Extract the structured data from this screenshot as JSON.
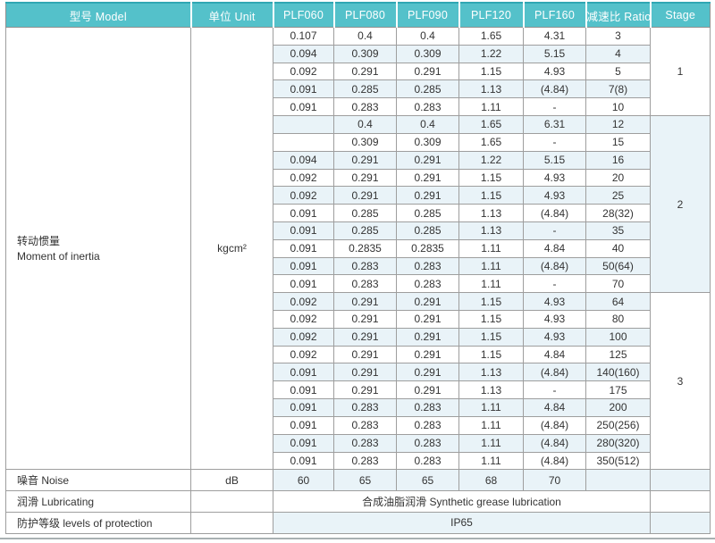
{
  "table": {
    "header": [
      "型号 Model",
      "单位 Unit",
      "PLF060",
      "PLF080",
      "PLF090",
      "PLF120",
      "PLF160",
      "减速比 Ratio",
      "Stage"
    ],
    "inertia": {
      "model_cn": "转动惯量",
      "model_en": "Moment of inertia",
      "unit": "kgcm²",
      "stages": [
        {
          "stage": "1",
          "rows": [
            [
              "0.107",
              "0.4",
              "0.4",
              "1.65",
              "4.31",
              "3"
            ],
            [
              "0.094",
              "0.309",
              "0.309",
              "1.22",
              "5.15",
              "4"
            ],
            [
              "0.092",
              "0.291",
              "0.291",
              "1.15",
              "4.93",
              "5"
            ],
            [
              "0.091",
              "0.285",
              "0.285",
              "1.13",
              "(4.84)",
              "7(8)"
            ],
            [
              "0.091",
              "0.283",
              "0.283",
              "1.11",
              "-",
              "10"
            ]
          ]
        },
        {
          "stage": "2",
          "rows": [
            [
              "",
              "0.4",
              "0.4",
              "1.65",
              "6.31",
              "12"
            ],
            [
              "",
              "0.309",
              "0.309",
              "1.65",
              "-",
              "15"
            ],
            [
              "0.094",
              "0.291",
              "0.291",
              "1.22",
              "5.15",
              "16"
            ],
            [
              "0.092",
              "0.291",
              "0.291",
              "1.15",
              "4.93",
              "20"
            ],
            [
              "0.092",
              "0.291",
              "0.291",
              "1.15",
              "4.93",
              "25"
            ],
            [
              "0.091",
              "0.285",
              "0.285",
              "1.13",
              "(4.84)",
              "28(32)"
            ],
            [
              "0.091",
              "0.285",
              "0.285",
              "1.13",
              "-",
              "35"
            ],
            [
              "0.091",
              "0.2835",
              "0.2835",
              "1.11",
              "4.84",
              "40"
            ],
            [
              "0.091",
              "0.283",
              "0.283",
              "1.11",
              "(4.84)",
              "50(64)"
            ],
            [
              "0.091",
              "0.283",
              "0.283",
              "1.11",
              "-",
              "70"
            ]
          ]
        },
        {
          "stage": "3",
          "rows": [
            [
              "0.092",
              "0.291",
              "0.291",
              "1.15",
              "4.93",
              "64"
            ],
            [
              "0.092",
              "0.291",
              "0.291",
              "1.15",
              "4.93",
              "80"
            ],
            [
              "0.092",
              "0.291",
              "0.291",
              "1.15",
              "4.93",
              "100"
            ],
            [
              "0.092",
              "0.291",
              "0.291",
              "1.15",
              "4.84",
              "125"
            ],
            [
              "0.091",
              "0.291",
              "0.291",
              "1.13",
              "(4.84)",
              "140(160)"
            ],
            [
              "0.091",
              "0.291",
              "0.291",
              "1.13",
              "-",
              "175"
            ],
            [
              "0.091",
              "0.283",
              "0.283",
              "1.11",
              "4.84",
              "200"
            ],
            [
              "0.091",
              "0.283",
              "0.283",
              "1.11",
              "(4.84)",
              "250(256)"
            ],
            [
              "0.091",
              "0.283",
              "0.283",
              "1.11",
              "(4.84)",
              "280(320)"
            ],
            [
              "0.091",
              "0.283",
              "0.283",
              "1.11",
              "(4.84)",
              "350(512)"
            ]
          ]
        }
      ]
    },
    "noise": {
      "label": "噪音 Noise",
      "unit": "dB",
      "values": [
        "60",
        "65",
        "65",
        "68",
        "70"
      ],
      "ratio": "",
      "stage": ""
    },
    "lubricating": {
      "label": "润滑 Lubricating",
      "unit": "",
      "value": "合成油脂润滑 Synthetic grease lubrication",
      "stage": ""
    },
    "protection": {
      "label": "防护等级 levels of protection",
      "unit": "",
      "value": "IP65",
      "stage": ""
    }
  },
  "colors": {
    "header_bg": "#54c1ca",
    "header_top_line": "#2fa7b3",
    "stripe": "#e9f3f8",
    "border": "#9e9e9e",
    "header_text": "#ffffff",
    "body_text": "#333333"
  }
}
